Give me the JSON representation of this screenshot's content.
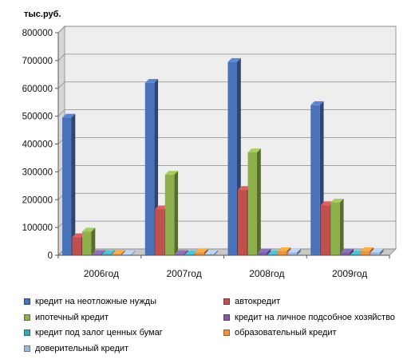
{
  "chart_data": {
    "type": "bar",
    "unit_label": "тыс.руб.",
    "categories": [
      "2006год",
      "2007год",
      "2008год",
      "2009год"
    ],
    "ylim": [
      0,
      800000
    ],
    "yticks": [
      "0",
      "100000",
      "200000",
      "300000",
      "400000",
      "500000",
      "600000",
      "700000",
      "800000"
    ],
    "grid": true,
    "legend_position": "bottom",
    "series": [
      {
        "name": "кредит на неотложные нужды",
        "color": "#4a72b8",
        "values": [
          495000,
          620000,
          695000,
          540000
        ]
      },
      {
        "name": "автокредит",
        "color": "#c0504d",
        "values": [
          65000,
          165000,
          235000,
          180000
        ]
      },
      {
        "name": "ипотечный кредит",
        "color": "#8db04a",
        "values": [
          85000,
          290000,
          370000,
          190000
        ]
      },
      {
        "name": "кредит на личное подсобное хозяйство",
        "color": "#7b5ea6",
        "values": [
          5000,
          5000,
          10000,
          10000
        ]
      },
      {
        "name": "кредит под залог ценных бумаг",
        "color": "#3ea7b8",
        "values": [
          5000,
          3000,
          3000,
          3000
        ]
      },
      {
        "name": "образовательный кредит",
        "color": "#f0913b",
        "values": [
          5000,
          10000,
          15000,
          15000
        ]
      },
      {
        "name": "доверительный кредит",
        "color": "#9db6dc",
        "values": [
          3000,
          5000,
          10000,
          10000
        ]
      }
    ]
  }
}
